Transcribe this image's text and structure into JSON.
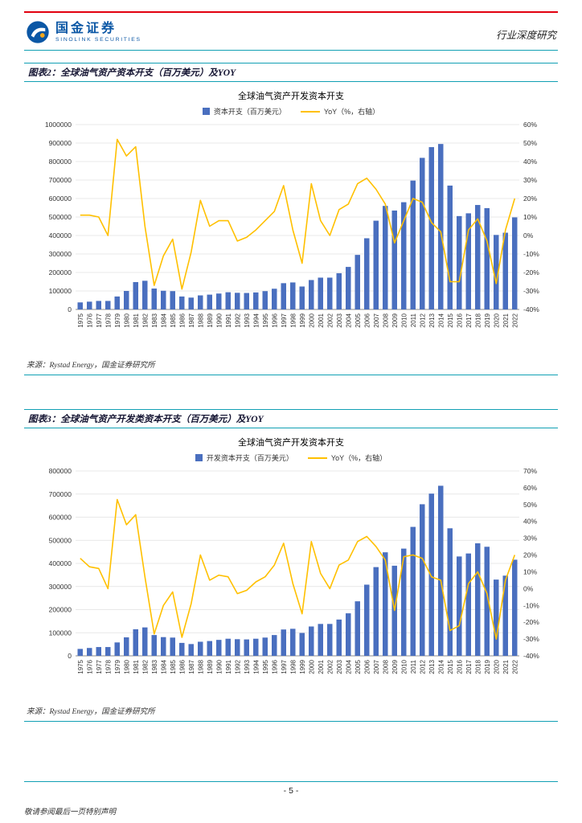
{
  "page": {
    "brand": {
      "name_cn": "国金证券",
      "name_en": "SINOLINK SECURITIES"
    },
    "header_right": "行业深度研究",
    "footer": {
      "page_number": "- 5 -",
      "disclaimer": "敬请参阅最后一页特别声明"
    }
  },
  "colors": {
    "accent_red": "#E2000F",
    "rule_teal": "#11A0B4",
    "brand_blue": "#0B57A5",
    "bar_blue": "#4A6FBF",
    "line_yellow": "#FFC000"
  },
  "figures": [
    {
      "header": "图表2：全球油气资产资本开支（百万美元）及YOY",
      "source": "来源：Rystad Energy，国金证券研究所"
    },
    {
      "header": "图表3：全球油气资产开发类资本开支（百万美元）及YOY",
      "source": "来源：Rystad Energy，国金证券研究所"
    }
  ],
  "chart_data": [
    {
      "type": "bar",
      "title": "全球油气资产开发资本开支",
      "legend_position": "top",
      "grid": true,
      "categories": [
        "1975",
        "1976",
        "1977",
        "1978",
        "1979",
        "1980",
        "1981",
        "1982",
        "1983",
        "1984",
        "1985",
        "1986",
        "1987",
        "1988",
        "1989",
        "1990",
        "1991",
        "1992",
        "1993",
        "1994",
        "1995",
        "1996",
        "1997",
        "1998",
        "1999",
        "2000",
        "2001",
        "2002",
        "2003",
        "2004",
        "2005",
        "2006",
        "2007",
        "2008",
        "2009",
        "2010",
        "2011",
        "2012",
        "2013",
        "2014",
        "2015",
        "2016",
        "2017",
        "2018",
        "2019",
        "2020",
        "2021",
        "2022"
      ],
      "left_axis": {
        "min": 0,
        "max": 1000000,
        "step": 100000
      },
      "right_axis": {
        "min": -40,
        "max": 60,
        "step": 10,
        "suffix": "%"
      },
      "series": [
        {
          "name": "资本开支（百万美元）",
          "type": "bar",
          "axis": "left",
          "values": [
            38000,
            42000,
            46000,
            46000,
            70000,
            100000,
            148000,
            155000,
            113000,
            101000,
            99000,
            70000,
            64000,
            76000,
            80000,
            86000,
            93000,
            90000,
            89000,
            92000,
            99000,
            112000,
            142000,
            146000,
            124000,
            159000,
            172000,
            172000,
            196000,
            230000,
            295000,
            385000,
            480000,
            560000,
            535000,
            580000,
            697000,
            820000,
            878000,
            895000,
            670000,
            505000,
            520000,
            565000,
            548000,
            403000,
            415000,
            498000
          ]
        },
        {
          "name": "YoY（%，右轴）",
          "type": "line",
          "axis": "right",
          "values": [
            11,
            11,
            10,
            0,
            52,
            43,
            48,
            5,
            -27,
            -11,
            -2,
            -29,
            -9,
            19,
            5,
            8,
            8,
            -3,
            -1,
            3,
            8,
            13,
            27,
            3,
            -15,
            28,
            8,
            0,
            14,
            17,
            28,
            31,
            25,
            17,
            -4,
            8,
            20,
            18,
            7,
            2,
            -25,
            -25,
            3,
            9,
            -3,
            -26,
            3,
            20
          ]
        }
      ]
    },
    {
      "type": "bar",
      "title": "全球油气资产开发资本开支",
      "legend_position": "top",
      "grid": true,
      "categories": [
        "1975",
        "1976",
        "1977",
        "1978",
        "1979",
        "1980",
        "1981",
        "1982",
        "1983",
        "1984",
        "1985",
        "1986",
        "1987",
        "1988",
        "1989",
        "1990",
        "1991",
        "1992",
        "1993",
        "1994",
        "1995",
        "1996",
        "1997",
        "1998",
        "1999",
        "2000",
        "2001",
        "2002",
        "2003",
        "2004",
        "2005",
        "2006",
        "2007",
        "2008",
        "2009",
        "2010",
        "2011",
        "2012",
        "2013",
        "2014",
        "2015",
        "2016",
        "2017",
        "2018",
        "2019",
        "2020",
        "2021",
        "2022"
      ],
      "left_axis": {
        "min": 0,
        "max": 800000,
        "step": 100000
      },
      "right_axis": {
        "min": -40,
        "max": 70,
        "step": 10,
        "suffix": "%"
      },
      "series": [
        {
          "name": "开发资本开支（百万美元）",
          "type": "bar",
          "axis": "left",
          "values": [
            30000,
            34000,
            38000,
            38000,
            58000,
            80000,
            115000,
            123000,
            90000,
            81000,
            79000,
            56000,
            51000,
            61000,
            64000,
            69000,
            74000,
            72000,
            71000,
            74000,
            79000,
            90000,
            114000,
            117000,
            99000,
            127000,
            138000,
            138000,
            157000,
            184000,
            236000,
            308000,
            384000,
            448000,
            390000,
            464000,
            558000,
            656000,
            702000,
            736000,
            552000,
            430000,
            443000,
            487000,
            472000,
            330000,
            347000,
            416000
          ]
        },
        {
          "name": "YoY（%，右轴）",
          "type": "line",
          "axis": "right",
          "values": [
            18,
            13,
            12,
            0,
            53,
            38,
            44,
            7,
            -27,
            -10,
            -2,
            -29,
            -9,
            20,
            5,
            8,
            7,
            -3,
            -1,
            4,
            7,
            14,
            27,
            3,
            -15,
            28,
            9,
            0,
            14,
            17,
            28,
            31,
            25,
            17,
            -13,
            19,
            20,
            18,
            7,
            5,
            -25,
            -22,
            3,
            10,
            -3,
            -30,
            5,
            20
          ]
        }
      ]
    }
  ]
}
